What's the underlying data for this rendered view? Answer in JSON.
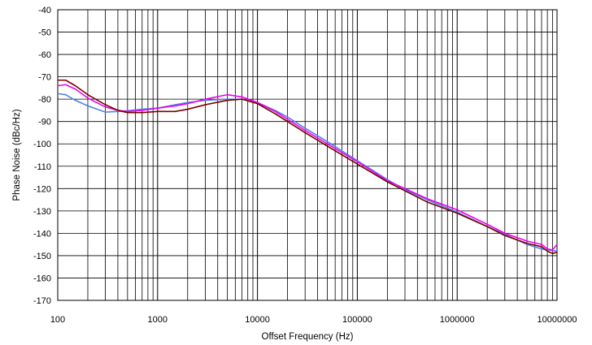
{
  "chart_data": {
    "type": "line",
    "title": "",
    "xlabel": "Offset Frequency (Hz)",
    "ylabel": "Phase Noise (dBc/Hz)",
    "xscale": "log",
    "xlim": [
      100,
      10000000
    ],
    "ylim": [
      -170,
      -40
    ],
    "grid": true,
    "legend": "none",
    "x_ticks": [
      {
        "value": 100,
        "label": "100"
      },
      {
        "value": 1000,
        "label": "1000"
      },
      {
        "value": 10000,
        "label": "10000"
      },
      {
        "value": 100000,
        "label": "100000"
      },
      {
        "value": 1000000,
        "label": "1000000"
      },
      {
        "value": 10000000,
        "label": "10000000"
      }
    ],
    "y_ticks": [
      -40,
      -50,
      -60,
      -70,
      -80,
      -90,
      -100,
      -110,
      -120,
      -130,
      -140,
      -150,
      -160,
      -170
    ],
    "series": [
      {
        "color": "#4f81e6",
        "points": [
          [
            100,
            -77.5
          ],
          [
            120,
            -78
          ],
          [
            150,
            -80.5
          ],
          [
            200,
            -83
          ],
          [
            300,
            -85.8
          ],
          [
            400,
            -85.5
          ],
          [
            500,
            -85.2
          ],
          [
            700,
            -84.5
          ],
          [
            1000,
            -84
          ],
          [
            1500,
            -82.5
          ],
          [
            2000,
            -81.5
          ],
          [
            3000,
            -80.5
          ],
          [
            5000,
            -80
          ],
          [
            7000,
            -80
          ],
          [
            10000,
            -81.5
          ],
          [
            15000,
            -85
          ],
          [
            20000,
            -88
          ],
          [
            30000,
            -93
          ],
          [
            50000,
            -99
          ],
          [
            100000,
            -107.5
          ],
          [
            200000,
            -116
          ],
          [
            300000,
            -120.5
          ],
          [
            500000,
            -125
          ],
          [
            1000000,
            -130.5
          ],
          [
            2000000,
            -137
          ],
          [
            3000000,
            -140.5
          ],
          [
            5000000,
            -145
          ],
          [
            7000000,
            -147
          ],
          [
            10000000,
            -148
          ]
        ]
      },
      {
        "color": "#ee00ee",
        "points": [
          [
            100,
            -74
          ],
          [
            120,
            -73.5
          ],
          [
            150,
            -75.5
          ],
          [
            200,
            -79.5
          ],
          [
            300,
            -83.5
          ],
          [
            400,
            -85
          ],
          [
            500,
            -85.5
          ],
          [
            700,
            -85
          ],
          [
            1000,
            -84
          ],
          [
            1500,
            -83
          ],
          [
            2000,
            -82
          ],
          [
            3000,
            -80
          ],
          [
            5000,
            -78
          ],
          [
            7000,
            -79
          ],
          [
            10000,
            -81.5
          ],
          [
            15000,
            -85.5
          ],
          [
            20000,
            -89
          ],
          [
            30000,
            -94
          ],
          [
            50000,
            -100
          ],
          [
            100000,
            -108
          ],
          [
            200000,
            -116.5
          ],
          [
            300000,
            -120
          ],
          [
            500000,
            -124.5
          ],
          [
            1000000,
            -129.5
          ],
          [
            2000000,
            -136
          ],
          [
            3000000,
            -140
          ],
          [
            5000000,
            -143.5
          ],
          [
            7000000,
            -145
          ],
          [
            8000000,
            -147
          ],
          [
            9000000,
            -147.5
          ],
          [
            10000000,
            -145
          ]
        ]
      },
      {
        "color": "#7a0000",
        "points": [
          [
            100,
            -71.5
          ],
          [
            120,
            -71.5
          ],
          [
            150,
            -74
          ],
          [
            200,
            -78
          ],
          [
            300,
            -82.5
          ],
          [
            400,
            -85
          ],
          [
            500,
            -86
          ],
          [
            700,
            -86
          ],
          [
            1000,
            -85.5
          ],
          [
            1500,
            -85.5
          ],
          [
            2000,
            -84.5
          ],
          [
            3000,
            -82.5
          ],
          [
            5000,
            -80.5
          ],
          [
            7000,
            -80
          ],
          [
            10000,
            -82
          ],
          [
            15000,
            -86.5
          ],
          [
            20000,
            -90
          ],
          [
            30000,
            -95
          ],
          [
            50000,
            -101
          ],
          [
            100000,
            -109
          ],
          [
            200000,
            -117
          ],
          [
            300000,
            -121
          ],
          [
            500000,
            -126
          ],
          [
            1000000,
            -131
          ],
          [
            2000000,
            -137
          ],
          [
            3000000,
            -141
          ],
          [
            5000000,
            -144.5
          ],
          [
            7000000,
            -146
          ],
          [
            8000000,
            -148
          ],
          [
            9000000,
            -149
          ],
          [
            10000000,
            -148.5
          ]
        ]
      }
    ]
  }
}
